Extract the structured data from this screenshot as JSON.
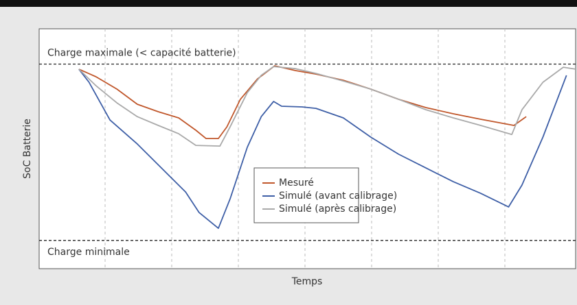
{
  "chart_data": {
    "type": "line",
    "y_label": "SoC Batterie",
    "x_label": "Temps",
    "xlim": [
      0,
      100
    ],
    "ylim": [
      -16,
      120
    ],
    "reference_lines": [
      {
        "label": "Charge maximale (< capacité batterie)",
        "value": 100
      },
      {
        "label": "Charge minimale",
        "value": 0
      }
    ],
    "legend": "center",
    "series": [
      {
        "name": "Mesuré",
        "color": "#c0562a",
        "x": [
          7.4,
          10.6,
          14.5,
          18.3,
          22.2,
          26.0,
          29.2,
          31.1,
          33.4,
          35.0,
          37.5,
          40.7,
          43.9,
          47.8,
          51.6,
          56.7,
          61.8,
          67.0,
          72.1,
          77.2,
          82.3,
          88.5,
          90.8
        ],
        "values": [
          97.1,
          92.8,
          85.8,
          77.2,
          73.0,
          69.5,
          62.5,
          57.8,
          57.8,
          64.4,
          80.0,
          91.6,
          99.0,
          96.3,
          94.3,
          90.8,
          85.8,
          80.0,
          75.3,
          71.8,
          68.7,
          65.2,
          70.2
        ]
      },
      {
        "name": "Simulé (avant calibrage)",
        "color": "#3d5ea6",
        "x": [
          7.4,
          9.3,
          13.2,
          18.3,
          23.4,
          27.3,
          29.8,
          33.4,
          35.6,
          38.8,
          41.4,
          43.7,
          45.2,
          49.0,
          51.6,
          56.7,
          61.8,
          67.0,
          72.1,
          77.2,
          82.3,
          87.5,
          90.0,
          93.9,
          98.3
        ],
        "values": [
          97.1,
          89.7,
          68.3,
          54.7,
          39.2,
          27.5,
          15.9,
          6.9,
          23.6,
          52.8,
          70.2,
          78.8,
          76.1,
          75.7,
          74.9,
          69.5,
          58.6,
          48.9,
          41.1,
          33.3,
          26.7,
          19.0,
          31.4,
          58.6,
          93.6
        ]
      },
      {
        "name": "Simulé (après calibrage)",
        "color": "#a9a9a9",
        "x": [
          7.4,
          10.6,
          14.5,
          18.3,
          22.2,
          26.0,
          29.2,
          33.7,
          35.6,
          38.8,
          41.4,
          43.7,
          47.8,
          51.6,
          56.7,
          61.8,
          67.0,
          72.1,
          77.2,
          82.3,
          88.1,
          90.0,
          93.9,
          97.7,
          100
        ],
        "values": [
          97.1,
          87.7,
          78.0,
          70.2,
          65.2,
          60.5,
          53.9,
          53.5,
          64.4,
          83.8,
          93.6,
          98.6,
          97.4,
          94.7,
          90.4,
          85.8,
          80.0,
          74.1,
          69.5,
          65.2,
          60.1,
          74.1,
          89.7,
          98.2,
          97.1
        ]
      }
    ]
  }
}
